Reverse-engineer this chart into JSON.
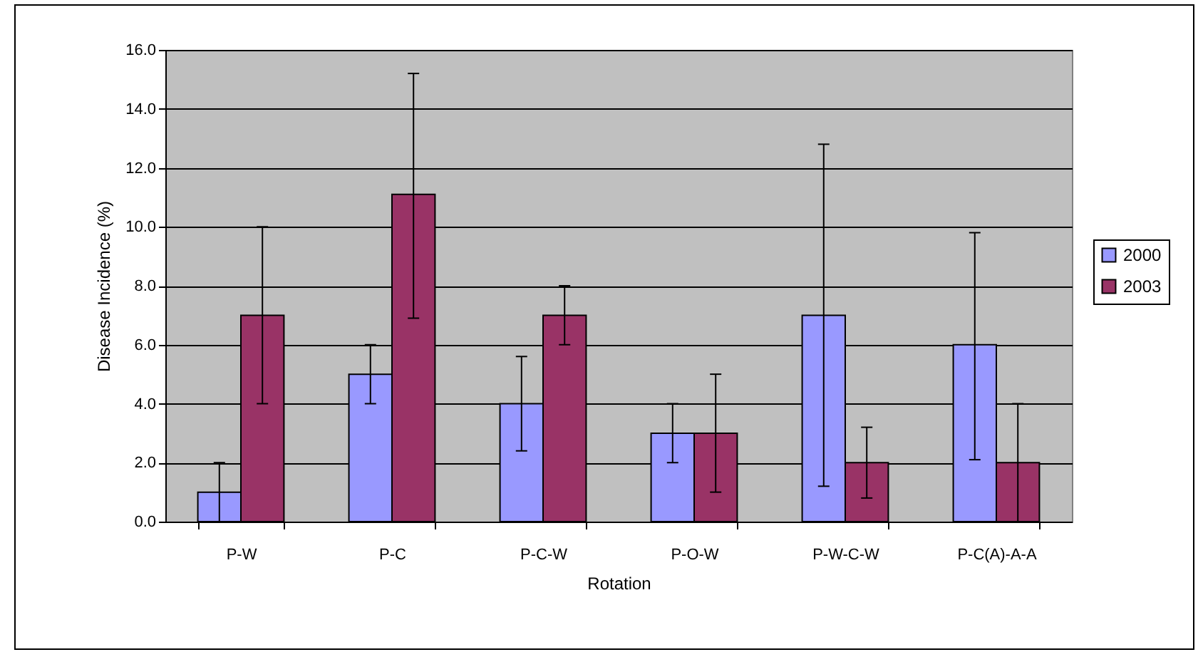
{
  "chart_data": {
    "type": "bar",
    "xlabel": "Rotation",
    "ylabel": "Disease Incidence (%)",
    "categories": [
      "P-W",
      "P-C",
      "P-C-W",
      "P-O-W",
      "P-W-C-W",
      "P-C(A)-A-A"
    ],
    "series": [
      {
        "name": "2000",
        "color": "#9999ff",
        "values": [
          1,
          5,
          4,
          3,
          7,
          6
        ],
        "errors": [
          [
            0,
            2
          ],
          [
            4,
            6
          ],
          [
            2.4,
            5.6
          ],
          [
            2,
            4
          ],
          [
            1.2,
            12.8
          ],
          [
            2.1,
            9.8
          ]
        ]
      },
      {
        "name": "2003",
        "color": "#993366",
        "values": [
          7,
          11.1,
          7,
          3,
          2,
          2
        ],
        "errors": [
          [
            4,
            10
          ],
          [
            6.9,
            15.2
          ],
          [
            6,
            8
          ],
          [
            1,
            5
          ],
          [
            0.8,
            3.2
          ],
          [
            0,
            4
          ]
        ]
      }
    ],
    "ylim": [
      0,
      16
    ],
    "yticks": [
      {
        "value": 0,
        "label": "0.0"
      },
      {
        "value": 2,
        "label": "2.0"
      },
      {
        "value": 4,
        "label": "4.0"
      },
      {
        "value": 6,
        "label": "6.0"
      },
      {
        "value": 8,
        "label": "8.0"
      },
      {
        "value": 10,
        "label": "10.0"
      },
      {
        "value": 12,
        "label": "12.0"
      },
      {
        "value": 14,
        "label": "14.0"
      },
      {
        "value": 16,
        "label": "16.0"
      }
    ],
    "grid": "y",
    "legend": "right"
  }
}
